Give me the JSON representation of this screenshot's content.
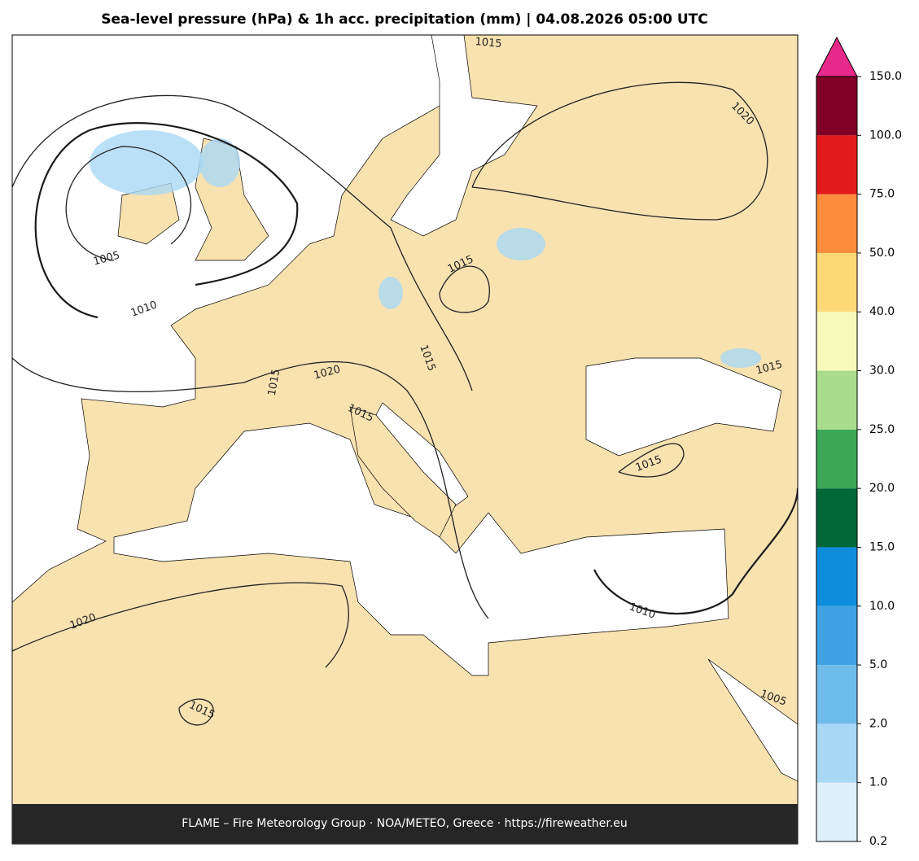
{
  "header": {
    "title": "Sea-level pressure (hPa) & 1h acc. precipitation (mm)  |  04.08.2026 05:00 UTC"
  },
  "footer": {
    "text": "FLAME – Fire Meteorology Group · NOA/METEO, Greece · https://fireweather.eu"
  },
  "colorbar": {
    "labels": [
      "0.2",
      "1.0",
      "2.0",
      "5.0",
      "10.0",
      "15.0",
      "20.0",
      "25.0",
      "30.0",
      "40.0",
      "50.0",
      "75.0",
      "100.0",
      "150.0"
    ],
    "colors": [
      "#dff0fb",
      "#a9d8f5",
      "#6fbbea",
      "#3fa2e3",
      "#0f8ddd",
      "#006837",
      "#3ba757",
      "#a9dc8c",
      "#f7fbb9",
      "#fed976",
      "#fd8c3d",
      "#e31a1c",
      "#800026"
    ],
    "extend_color": "#e7298a"
  },
  "map": {
    "contour_labels": [
      "1015",
      "1020",
      "1005",
      "1010",
      "1015",
      "1015",
      "1020",
      "1015",
      "1015",
      "1015",
      "1015",
      "1010",
      "1020",
      "1005",
      "1015"
    ]
  }
}
